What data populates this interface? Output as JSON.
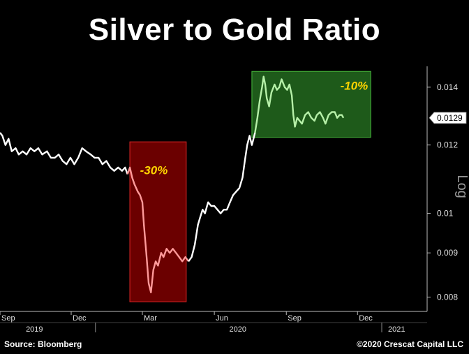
{
  "title": "Silver to Gold Ratio",
  "source": "Source: Bloomberg",
  "credit": "©2020 Crescat Capital LLC",
  "colors": {
    "background": "#000000",
    "line": "#ffffff",
    "drop_box": "#6b0000",
    "drop_line": "#ff9a9a",
    "flat_box": "#1e5a1a",
    "flat_line": "#b6f0a8",
    "annotation": "#ffd400",
    "axis": "#bdbdbd"
  },
  "chart_data": {
    "type": "line",
    "title": "Silver to Gold Ratio",
    "ylabel": "Log",
    "yscale": "log",
    "ylim": [
      0.0077,
      0.0148
    ],
    "xlim": [
      "2019-09-01",
      "2021-02-28"
    ],
    "ytick_labels": [
      "0.014",
      "0.012",
      "0.01",
      "0.009",
      "0.008"
    ],
    "ytick_values": [
      0.014,
      0.012,
      0.01,
      0.009,
      0.008
    ],
    "x_month_labels": [
      {
        "label": "Sep",
        "date": "2019-09-01"
      },
      {
        "label": "Dec",
        "date": "2019-12-01"
      },
      {
        "label": "Mar",
        "date": "2020-03-01"
      },
      {
        "label": "Jun",
        "date": "2020-06-01"
      },
      {
        "label": "Sep",
        "date": "2020-09-01"
      },
      {
        "label": "Dec",
        "date": "2020-12-01"
      }
    ],
    "x_year_labels": [
      {
        "label": "2019",
        "date": "2019-10-15"
      },
      {
        "label": "2020",
        "date": "2020-07-01"
      },
      {
        "label": "2021",
        "date": "2021-01-20"
      }
    ],
    "last_value_label": "0.0129",
    "last_value": 0.0129,
    "series": [
      {
        "points": [
          [
            "2019-09-01",
            0.0124
          ],
          [
            "2019-09-04",
            0.0123
          ],
          [
            "2019-09-08",
            0.012
          ],
          [
            "2019-09-12",
            0.0122
          ],
          [
            "2019-09-16",
            0.0118
          ],
          [
            "2019-09-21",
            0.0119
          ],
          [
            "2019-09-25",
            0.0117
          ],
          [
            "2019-09-30",
            0.0118
          ],
          [
            "2019-10-05",
            0.0117
          ],
          [
            "2019-10-10",
            0.0119
          ],
          [
            "2019-10-15",
            0.0118
          ],
          [
            "2019-10-20",
            0.0119
          ],
          [
            "2019-10-25",
            0.0117
          ],
          [
            "2019-10-31",
            0.0118
          ],
          [
            "2019-11-05",
            0.0116
          ],
          [
            "2019-11-10",
            0.0116
          ],
          [
            "2019-11-15",
            0.0117
          ],
          [
            "2019-11-20",
            0.0115
          ],
          [
            "2019-11-25",
            0.0114
          ],
          [
            "2019-11-30",
            0.0116
          ],
          [
            "2019-12-05",
            0.0114
          ],
          [
            "2019-12-10",
            0.0116
          ],
          [
            "2019-12-15",
            0.0119
          ],
          [
            "2019-12-20",
            0.0118
          ],
          [
            "2019-12-26",
            0.0117
          ],
          [
            "2019-12-31",
            0.0116
          ],
          [
            "2020-01-05",
            0.0116
          ],
          [
            "2020-01-10",
            0.0114
          ],
          [
            "2020-01-15",
            0.0115
          ],
          [
            "2020-01-20",
            0.0113
          ],
          [
            "2020-01-25",
            0.0112
          ],
          [
            "2020-01-30",
            0.0113
          ],
          [
            "2020-02-04",
            0.0112
          ],
          [
            "2020-02-08",
            0.0113
          ],
          [
            "2020-02-11",
            0.0111
          ]
        ]
      },
      {
        "name_ref": "drop",
        "points": [
          [
            "2020-02-11",
            0.0111
          ],
          [
            "2020-02-14",
            0.0113
          ],
          [
            "2020-02-17",
            0.011
          ],
          [
            "2020-02-20",
            0.0108
          ],
          [
            "2020-02-24",
            0.0106
          ],
          [
            "2020-02-27",
            0.0105
          ],
          [
            "2020-03-01",
            0.0103
          ],
          [
            "2020-03-03",
            0.0097
          ],
          [
            "2020-03-06",
            0.009
          ],
          [
            "2020-03-09",
            0.0083
          ],
          [
            "2020-03-12",
            0.0081
          ],
          [
            "2020-03-15",
            0.0086
          ],
          [
            "2020-03-18",
            0.0088
          ],
          [
            "2020-03-21",
            0.0087
          ],
          [
            "2020-03-25",
            0.009
          ],
          [
            "2020-03-28",
            0.0089
          ],
          [
            "2020-04-01",
            0.0091
          ],
          [
            "2020-04-05",
            0.009
          ],
          [
            "2020-04-09",
            0.0091
          ],
          [
            "2020-04-13",
            0.009
          ],
          [
            "2020-04-17",
            0.0089
          ],
          [
            "2020-04-21",
            0.0088
          ],
          [
            "2020-04-25",
            0.0089
          ],
          [
            "2020-04-29",
            0.0088
          ]
        ]
      },
      {
        "points": [
          [
            "2020-04-29",
            0.0088
          ],
          [
            "2020-05-03",
            0.0089
          ],
          [
            "2020-05-07",
            0.0092
          ],
          [
            "2020-05-11",
            0.0097
          ],
          [
            "2020-05-14",
            0.0099
          ],
          [
            "2020-05-17",
            0.0101
          ],
          [
            "2020-05-20",
            0.01
          ],
          [
            "2020-05-24",
            0.0103
          ],
          [
            "2020-05-28",
            0.0102
          ],
          [
            "2020-06-01",
            0.0102
          ],
          [
            "2020-06-05",
            0.0101
          ],
          [
            "2020-06-09",
            0.01
          ],
          [
            "2020-06-13",
            0.0101
          ],
          [
            "2020-06-17",
            0.0101
          ],
          [
            "2020-06-21",
            0.0103
          ],
          [
            "2020-06-25",
            0.0105
          ],
          [
            "2020-06-29",
            0.0106
          ],
          [
            "2020-07-03",
            0.0107
          ],
          [
            "2020-07-07",
            0.011
          ],
          [
            "2020-07-10",
            0.0115
          ],
          [
            "2020-07-13",
            0.012
          ],
          [
            "2020-07-16",
            0.0123
          ],
          [
            "2020-07-19",
            0.012
          ],
          [
            "2020-07-21",
            0.0122
          ],
          [
            "2020-07-23",
            0.0124
          ]
        ]
      },
      {
        "name_ref": "flat",
        "points": [
          [
            "2020-07-23",
            0.0124
          ],
          [
            "2020-07-26",
            0.0129
          ],
          [
            "2020-07-29",
            0.0135
          ],
          [
            "2020-08-01",
            0.014
          ],
          [
            "2020-08-03",
            0.0144
          ],
          [
            "2020-08-05",
            0.0141
          ],
          [
            "2020-08-07",
            0.0136
          ],
          [
            "2020-08-10",
            0.0133
          ],
          [
            "2020-08-13",
            0.0138
          ],
          [
            "2020-08-17",
            0.0141
          ],
          [
            "2020-08-20",
            0.0139
          ],
          [
            "2020-08-23",
            0.014
          ],
          [
            "2020-08-26",
            0.0143
          ],
          [
            "2020-08-30",
            0.014
          ],
          [
            "2020-09-02",
            0.0139
          ],
          [
            "2020-09-05",
            0.0141
          ],
          [
            "2020-09-08",
            0.0137
          ],
          [
            "2020-09-10",
            0.013
          ],
          [
            "2020-09-12",
            0.0126
          ],
          [
            "2020-09-15",
            0.0129
          ],
          [
            "2020-09-18",
            0.0128
          ],
          [
            "2020-09-21",
            0.0127
          ],
          [
            "2020-09-25",
            0.013
          ],
          [
            "2020-09-29",
            0.0131
          ],
          [
            "2020-10-03",
            0.0129
          ],
          [
            "2020-10-07",
            0.0128
          ],
          [
            "2020-10-10",
            0.013
          ],
          [
            "2020-10-14",
            0.0131
          ],
          [
            "2020-10-18",
            0.0129
          ],
          [
            "2020-10-21",
            0.0127
          ],
          [
            "2020-10-25",
            0.013
          ],
          [
            "2020-10-29",
            0.0131
          ],
          [
            "2020-11-02",
            0.0131
          ],
          [
            "2020-11-05",
            0.0129
          ],
          [
            "2020-11-08",
            0.013
          ],
          [
            "2020-11-11",
            0.013
          ],
          [
            "2020-11-13",
            0.0129
          ]
        ]
      }
    ],
    "annotations": [
      {
        "id": "drop",
        "label": "-30%",
        "x_from": "2020-02-14",
        "x_to": "2020-04-26",
        "y_from": 0.0079,
        "y_to": 0.0121
      },
      {
        "id": "flat",
        "label": "-10%",
        "x_from": "2020-07-19",
        "x_to": "2020-12-18",
        "y_from": 0.01225,
        "y_to": 0.0146
      }
    ]
  }
}
